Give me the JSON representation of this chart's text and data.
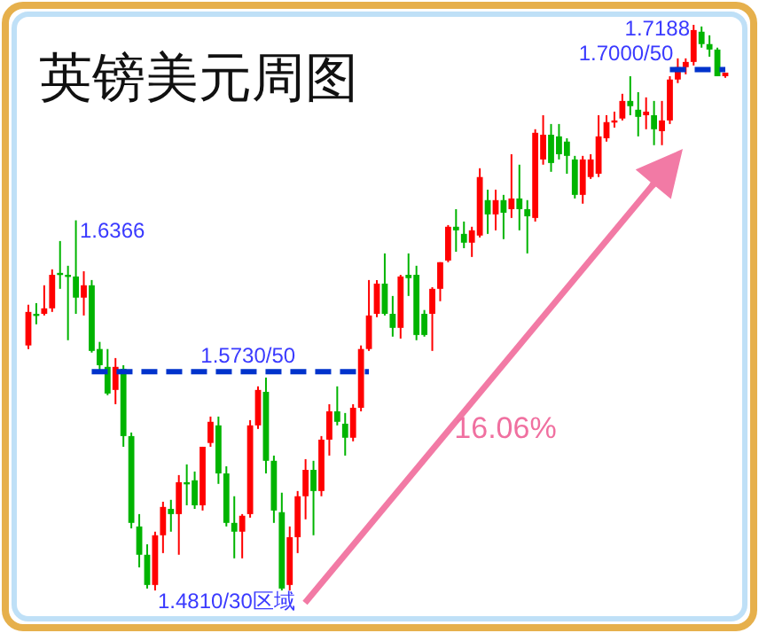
{
  "chart_data": {
    "type": "candlestick",
    "title": "英镑美元周图",
    "categories": [
      null,
      null,
      null,
      null,
      null,
      null,
      null,
      null,
      null,
      null,
      null,
      null,
      null,
      null,
      null,
      null,
      null,
      null,
      null,
      null,
      null,
      null,
      null,
      null,
      null,
      null,
      null,
      null,
      null,
      null,
      null,
      null,
      null,
      null,
      null,
      null,
      null,
      null,
      null,
      null,
      null,
      null,
      null,
      null,
      null,
      null,
      null,
      null,
      null,
      null,
      null,
      null,
      null,
      null,
      null,
      null,
      null,
      null,
      null,
      null,
      null,
      null,
      null,
      null,
      null,
      null,
      null,
      null,
      null,
      null,
      null,
      null,
      null,
      null,
      null,
      null,
      null,
      null,
      null,
      null,
      null,
      null,
      null,
      null,
      null,
      null,
      null,
      null,
      null
    ],
    "ohlc": [
      [
        1.584,
        1.6011,
        1.5825,
        1.5981
      ],
      [
        1.5973,
        1.6018,
        1.5929,
        1.5966
      ],
      [
        1.5973,
        1.6093,
        1.5966,
        1.5996
      ],
      [
        1.5996,
        1.616,
        1.5981,
        1.6137
      ],
      [
        1.6145,
        1.6279,
        1.6078,
        1.6137
      ],
      [
        1.6137,
        1.6175,
        1.5862,
        1.613
      ],
      [
        1.613,
        1.6366,
        1.5973,
        1.6041
      ],
      [
        1.6041,
        1.6152,
        1.5966,
        1.6093
      ],
      [
        1.6093,
        1.6115,
        1.581,
        1.5817
      ],
      [
        1.5825,
        1.5855,
        1.5727,
        1.5757
      ],
      [
        1.575,
        1.5825,
        1.5631,
        1.5638
      ],
      [
        1.5653,
        1.5787,
        1.5593,
        1.575
      ],
      [
        1.5742,
        1.5757,
        1.5414,
        1.5459
      ],
      [
        1.5459,
        1.5474,
        1.5071,
        1.5094
      ],
      [
        1.5079,
        1.5131,
        1.4907,
        1.496
      ],
      [
        1.496,
        1.5004,
        1.4818,
        1.4833
      ],
      [
        1.4833,
        1.5057,
        1.481,
        1.5042
      ],
      [
        1.5042,
        1.5183,
        1.4967,
        1.5161
      ],
      [
        1.5153,
        1.5191,
        1.5057,
        1.5131
      ],
      [
        1.5131,
        1.5295,
        1.496,
        1.5265
      ],
      [
        1.5265,
        1.534,
        1.5168,
        1.5258
      ],
      [
        1.5273,
        1.531,
        1.5153,
        1.5168
      ],
      [
        1.5168,
        1.5414,
        1.5146,
        1.5414
      ],
      [
        1.543,
        1.5541,
        1.5414,
        1.5519
      ],
      [
        1.5504,
        1.5541,
        1.5258,
        1.5302
      ],
      [
        1.5302,
        1.5332,
        1.5079,
        1.5094
      ],
      [
        1.5094,
        1.5206,
        1.4945,
        1.5057
      ],
      [
        1.5057,
        1.5131,
        1.4945,
        1.5124
      ],
      [
        1.5131,
        1.5526,
        1.5116,
        1.5504
      ],
      [
        1.5504,
        1.5668,
        1.5489,
        1.5653
      ],
      [
        1.5645,
        1.5705,
        1.5302,
        1.5355
      ],
      [
        1.5355,
        1.5377,
        1.5094,
        1.5146
      ],
      [
        1.5139,
        1.5221,
        1.481,
        1.4818
      ],
      [
        1.4833,
        1.5079,
        1.481,
        1.5034
      ],
      [
        1.5034,
        1.5228,
        1.4967,
        1.5206
      ],
      [
        1.5206,
        1.5362,
        1.5109,
        1.5317
      ],
      [
        1.5317,
        1.5355,
        1.5042,
        1.5228
      ],
      [
        1.5228,
        1.5459,
        1.5206,
        1.5444
      ],
      [
        1.5444,
        1.5593,
        1.5377,
        1.5563
      ],
      [
        1.5563,
        1.5668,
        1.5504,
        1.5519
      ],
      [
        1.5511,
        1.5556,
        1.5377,
        1.5452
      ],
      [
        1.5452,
        1.5593,
        1.5437,
        1.5578
      ],
      [
        1.5578,
        1.584,
        1.5563,
        1.5825
      ],
      [
        1.5825,
        1.6115,
        1.5817,
        1.5966
      ],
      [
        1.5973,
        1.6115,
        1.5959,
        1.61
      ],
      [
        1.61,
        1.6227,
        1.5966,
        1.5973
      ],
      [
        1.5973,
        1.6048,
        1.5877,
        1.5914
      ],
      [
        1.5914,
        1.6137,
        1.5869,
        1.613
      ],
      [
        1.6137,
        1.6227,
        1.6048,
        1.6123
      ],
      [
        1.6137,
        1.6175,
        1.5862,
        1.5884
      ],
      [
        1.5973,
        1.5989,
        1.5877,
        1.5884
      ],
      [
        1.5973,
        1.6085,
        1.5817,
        1.6078
      ],
      [
        1.6078,
        1.619,
        1.6026,
        1.619
      ],
      [
        1.6197,
        1.6346,
        1.619,
        1.6339
      ],
      [
        1.6339,
        1.6413,
        1.6234,
        1.6324
      ],
      [
        1.6309,
        1.6361,
        1.6249,
        1.6272
      ],
      [
        1.6272,
        1.6339,
        1.6212,
        1.6324
      ],
      [
        1.6302,
        1.6585,
        1.6294,
        1.6548
      ],
      [
        1.6451,
        1.6495,
        1.6309,
        1.6391
      ],
      [
        1.6391,
        1.6495,
        1.6324,
        1.6451
      ],
      [
        1.6451,
        1.6473,
        1.6287,
        1.6398
      ],
      [
        1.6413,
        1.6644,
        1.6376,
        1.6458
      ],
      [
        1.6458,
        1.66,
        1.6324,
        1.6413
      ],
      [
        1.6413,
        1.6451,
        1.6227,
        1.6383
      ],
      [
        1.6376,
        1.6749,
        1.6361,
        1.6734
      ],
      [
        1.6622,
        1.6808,
        1.66,
        1.6726
      ],
      [
        1.6726,
        1.6771,
        1.657,
        1.6607
      ],
      [
        1.6719,
        1.6771,
        1.6622,
        1.6644
      ],
      [
        1.6697,
        1.6711,
        1.6562,
        1.6637
      ],
      [
        1.6622,
        1.6637,
        1.6458,
        1.6473
      ],
      [
        1.6473,
        1.6637,
        1.6436,
        1.6622
      ],
      [
        1.6548,
        1.6644,
        1.654,
        1.6622
      ],
      [
        1.6562,
        1.6808,
        1.6548,
        1.6719
      ],
      [
        1.6711,
        1.6808,
        1.6697,
        1.6779
      ],
      [
        1.6779,
        1.6823,
        1.6756,
        1.6786
      ],
      [
        1.6794,
        1.6898,
        1.6786,
        1.6868
      ],
      [
        1.6868,
        1.6972,
        1.6808,
        1.6846
      ],
      [
        1.6831,
        1.6905,
        1.6719,
        1.6801
      ],
      [
        1.6808,
        1.6883,
        1.6749,
        1.6823
      ],
      [
        1.6808,
        1.6868,
        1.6682,
        1.6749
      ],
      [
        1.6741,
        1.6868,
        1.6682,
        1.6786
      ],
      [
        1.6786,
        1.6972,
        1.6771,
        1.6958
      ],
      [
        1.6958,
        1.7047,
        1.6943,
        1.701
      ],
      [
        1.701,
        1.7047,
        1.698,
        1.7032
      ],
      [
        1.7032,
        1.7188,
        1.7017,
        1.7166
      ],
      [
        1.7159,
        1.7181,
        1.7092,
        1.7107
      ],
      [
        1.7107,
        1.7144,
        1.7054,
        1.7084
      ],
      [
        1.7084,
        1.7092,
        1.6972,
        1.6972
      ],
      [
        1.6972,
        1.6987,
        1.6965,
        1.6987
      ]
    ],
    "colors": [
      "#ff0000",
      "#00b400",
      "#ff0000",
      "#ff0000",
      "#00b400",
      "#00b400",
      "#00b400",
      "#ff0000",
      "#00b400",
      "#00b400",
      "#00b400",
      "#ff0000",
      "#00b400",
      "#00b400",
      "#00b400",
      "#00b400",
      "#ff0000",
      "#ff0000",
      "#00b400",
      "#ff0000",
      "#00b400",
      "#00b400",
      "#ff0000",
      "#ff0000",
      "#00b400",
      "#00b400",
      "#00b400",
      "#ff0000",
      "#ff0000",
      "#ff0000",
      "#00b400",
      "#00b400",
      "#00b400",
      "#ff0000",
      "#ff0000",
      "#ff0000",
      "#00b400",
      "#ff0000",
      "#ff0000",
      "#00b400",
      "#00b400",
      "#ff0000",
      "#ff0000",
      "#ff0000",
      "#ff0000",
      "#00b400",
      "#00b400",
      "#ff0000",
      "#00b400",
      "#00b400",
      "#00b400",
      "#ff0000",
      "#ff0000",
      "#ff0000",
      "#00b400",
      "#00b400",
      "#ff0000",
      "#ff0000",
      "#00b400",
      "#ff0000",
      "#00b400",
      "#ff0000",
      "#00b400",
      "#00b400",
      "#ff0000",
      "#ff0000",
      "#00b400",
      "#00b400",
      "#00b400",
      "#00b400",
      "#ff0000",
      "#ff0000",
      "#ff0000",
      "#ff0000",
      "#ff0000",
      "#ff0000",
      "#00b400",
      "#00b400",
      "#ff0000",
      "#00b400",
      "#ff0000",
      "#ff0000",
      "#ff0000",
      "#ff0000",
      "#ff0000",
      "#00b400",
      "#00b400",
      "#00b400",
      "#ff0000"
    ],
    "ref_lines": [
      {
        "axis": "y",
        "value": 1.573,
        "label": "1.5730/50",
        "color": "#0033cc",
        "line_style": "dashed"
      },
      {
        "axis": "y",
        "value": 1.7,
        "label": "1.7000/50",
        "color": "#0033cc",
        "line_style": "dashed"
      }
    ],
    "annotations": [
      "1.6366",
      "1.4810/30区域",
      "1.7188",
      "16.06%"
    ]
  }
}
